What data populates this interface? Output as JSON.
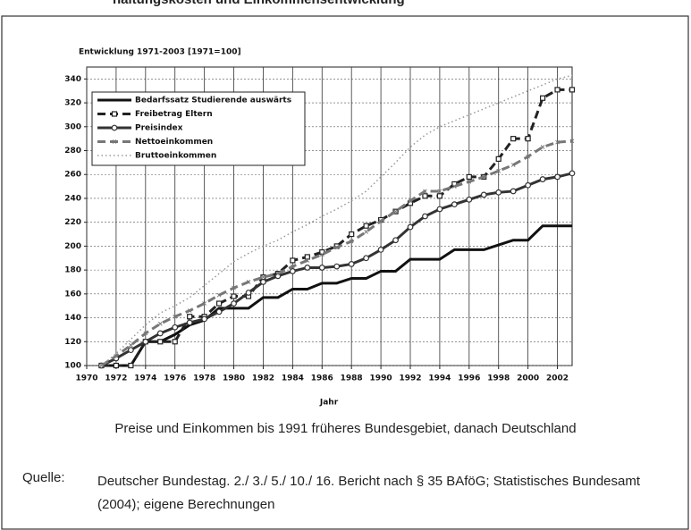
{
  "heading": "haltungskosten und Einkommensentwicklung",
  "chart_data": {
    "type": "line",
    "title": "Entwicklung 1971-2003 [1971=100]",
    "x_label": "Jahr",
    "x": [
      1971,
      1972,
      1973,
      1974,
      1975,
      1976,
      1977,
      1978,
      1979,
      1980,
      1981,
      1982,
      1983,
      1984,
      1985,
      1986,
      1987,
      1988,
      1989,
      1990,
      1991,
      1992,
      1993,
      1994,
      1995,
      1996,
      1997,
      1998,
      1999,
      2000,
      2001,
      2002,
      2003
    ],
    "xlim": [
      1970,
      2003
    ],
    "xticks": [
      1970,
      1972,
      1974,
      1976,
      1978,
      1980,
      1982,
      1984,
      1986,
      1988,
      1990,
      1992,
      1994,
      1996,
      1998,
      2000,
      2002
    ],
    "ylim": [
      100,
      350
    ],
    "yticks": [
      100,
      120,
      140,
      160,
      180,
      200,
      220,
      240,
      260,
      280,
      300,
      320,
      340
    ],
    "grid": true,
    "legend": "upper left",
    "series": [
      {
        "name": "Bedarfssatz Studierende auswärts",
        "color": "#111111",
        "style": "solid",
        "marker": "none",
        "values": [
          100,
          100,
          100,
          120,
          120,
          126,
          134,
          138,
          148,
          148,
          148,
          157,
          157,
          164,
          164,
          169,
          169,
          173,
          173,
          179,
          179,
          189,
          189,
          189,
          197,
          197,
          197,
          201,
          205,
          205,
          217,
          217,
          217
        ]
      },
      {
        "name": "Freibetrag Eltern",
        "color": "#222222",
        "style": "dashed",
        "marker": "square",
        "values": [
          100,
          100,
          100,
          120,
          120,
          120,
          141,
          141,
          152,
          158,
          158,
          174,
          177,
          188,
          191,
          195,
          200,
          210,
          217,
          222,
          229,
          236,
          242,
          242,
          252,
          258,
          258,
          273,
          290,
          290,
          324,
          331,
          331
        ]
      },
      {
        "name": "Preisindex",
        "color": "#333333",
        "style": "solid",
        "marker": "circle",
        "values": [
          100,
          106,
          113,
          120,
          127,
          132,
          136,
          139,
          145,
          152,
          161,
          170,
          175,
          179,
          182,
          182,
          183,
          185,
          190,
          197,
          205,
          216,
          225,
          231,
          235,
          239,
          243,
          245,
          246,
          251,
          256,
          258,
          261
        ]
      },
      {
        "name": "Nettoeinkommen",
        "color": "#777777",
        "style": "dashed",
        "marker": "x",
        "values": [
          100,
          108,
          117,
          127,
          135,
          141,
          146,
          152,
          159,
          165,
          170,
          174,
          177,
          183,
          188,
          193,
          199,
          204,
          212,
          221,
          229,
          238,
          246,
          246,
          250,
          254,
          258,
          263,
          268,
          275,
          283,
          287,
          288
        ]
      },
      {
        "name": "Bruttoeinkommen",
        "color": "#999999",
        "style": "dotted",
        "marker": "none",
        "values": [
          100,
          110,
          122,
          134,
          144,
          150,
          157,
          167,
          177,
          187,
          194,
          200,
          205,
          212,
          218,
          225,
          231,
          238,
          246,
          258,
          270,
          283,
          293,
          300,
          305,
          310,
          315,
          320,
          325,
          330,
          335,
          340,
          343
        ]
      }
    ]
  },
  "note": "Preise und Einkommen bis 1991 früheres Bundesgebiet, danach Deutschland",
  "source": {
    "label": "Quelle:",
    "text": "Deutscher Bundestag. 2./ 3./ 5./ 10./ 16. Bericht nach § 35 BAföG; Statistisches Bundesamt (2004); eigene Berechnungen"
  }
}
